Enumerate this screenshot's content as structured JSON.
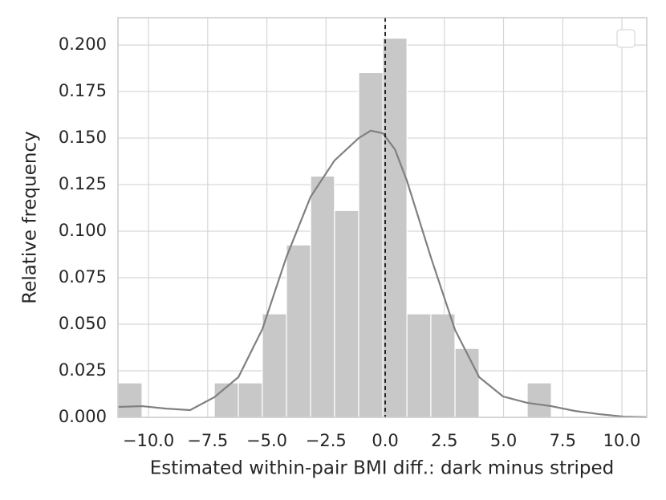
{
  "chart_data": {
    "type": "histogram",
    "xlabel": "Estimated within-pair BMI diff.: dark minus striped",
    "ylabel": "Relative frequency",
    "bins": [
      -11.29,
      -10.27,
      -9.25,
      -8.24,
      -7.22,
      -6.2,
      -5.19,
      -4.17,
      -3.15,
      -2.14,
      -1.12,
      -0.1,
      0.92,
      1.93,
      2.95,
      3.97,
      4.98,
      6.0,
      7.02
    ],
    "values": [
      0.0185,
      0,
      0,
      0,
      0.0185,
      0.0185,
      0.0556,
      0.0926,
      0.1296,
      0.1111,
      0.1852,
      0.2037,
      0.0556,
      0.0556,
      0.037,
      0,
      0,
      0.0185
    ],
    "color": "#c8c8c8",
    "kde": {
      "color": "#808080",
      "x": [
        -11.29,
        -10.27,
        -9.25,
        -8.24,
        -7.22,
        -6.2,
        -5.19,
        -4.17,
        -3.15,
        -2.14,
        -1.12,
        -0.61,
        -0.1,
        0.41,
        0.92,
        1.93,
        2.95,
        3.97,
        4.98,
        6.0,
        7.02,
        8.03,
        9.05,
        10.07,
        11.05
      ],
      "y": [
        0.0056,
        0.006,
        0.0047,
        0.0039,
        0.0108,
        0.0216,
        0.0474,
        0.0862,
        0.1185,
        0.138,
        0.15,
        0.154,
        0.1526,
        0.144,
        0.127,
        0.086,
        0.047,
        0.0216,
        0.0112,
        0.0078,
        0.006,
        0.0034,
        0.0017,
        0.0004,
        0.0001
      ]
    },
    "vline": 0,
    "xlim": [
      -11.29,
      11.05
    ],
    "ylim": [
      0,
      0.2147
    ],
    "xticks": [
      {
        "value": -10,
        "label": "−10.0"
      },
      {
        "value": -7.5,
        "label": "−7.5"
      },
      {
        "value": -5,
        "label": "−5.0"
      },
      {
        "value": -2.5,
        "label": "−2.5"
      },
      {
        "value": 0,
        "label": "0.0"
      },
      {
        "value": 2.5,
        "label": "2.5"
      },
      {
        "value": 5,
        "label": "5.0"
      },
      {
        "value": 7.5,
        "label": "7.5"
      },
      {
        "value": 10,
        "label": "10.0"
      }
    ],
    "yticks": [
      {
        "value": 0,
        "label": "0.000"
      },
      {
        "value": 0.025,
        "label": "0.025"
      },
      {
        "value": 0.05,
        "label": "0.050"
      },
      {
        "value": 0.075,
        "label": "0.075"
      },
      {
        "value": 0.1,
        "label": "0.100"
      },
      {
        "value": 0.125,
        "label": "0.125"
      },
      {
        "value": 0.15,
        "label": "0.150"
      },
      {
        "value": 0.175,
        "label": "0.175"
      },
      {
        "value": 0.2,
        "label": "0.200"
      }
    ],
    "grid": true
  }
}
